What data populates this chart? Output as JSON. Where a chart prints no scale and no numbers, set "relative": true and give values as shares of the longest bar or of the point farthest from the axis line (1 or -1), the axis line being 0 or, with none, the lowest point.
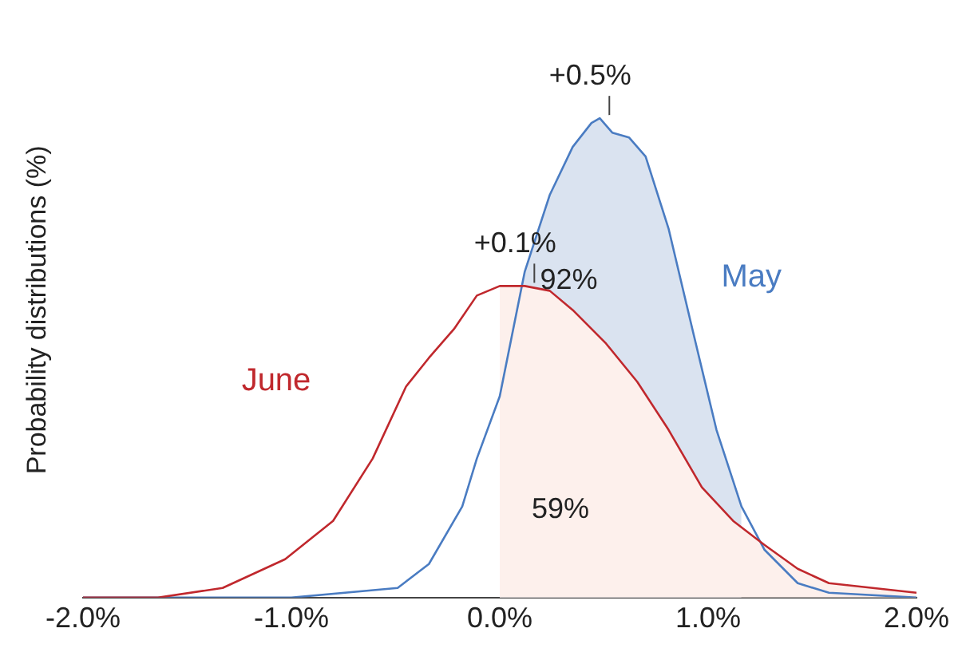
{
  "chart_data": {
    "type": "line",
    "relative": true,
    "ylabel": "Probability distributions (%)",
    "xlim": [
      -2,
      2
    ],
    "xticks": [
      {
        "value": -2,
        "label": "-2.0%"
      },
      {
        "value": -1,
        "label": "-1.0%"
      },
      {
        "value": 0,
        "label": "0.0%"
      },
      {
        "value": 1,
        "label": "1.0%"
      },
      {
        "value": 2,
        "label": "2.0%"
      }
    ],
    "grid": false,
    "legend": false,
    "marker": "none",
    "line_style": "solid",
    "series": [
      {
        "type": "area",
        "color": "#dae3f0",
        "x": [
          0,
          0.12,
          0.24,
          0.35,
          0.44,
          0.48,
          0.54,
          0.62,
          0.7,
          0.81,
          0.93,
          1.04,
          1.16
        ],
        "values": [
          0.42,
          0.68,
          0.84,
          0.94,
          0.99,
          1,
          0.97,
          0.96,
          0.92,
          0.77,
          0.55,
          0.35,
          0.19
        ]
      },
      {
        "type": "area",
        "color": "#fdf0ec",
        "x": [
          0,
          0.12,
          0.24,
          0.35,
          0.51,
          0.66,
          0.81,
          0.97,
          1.12,
          1.27,
          1.43,
          1.58,
          2
        ],
        "values": [
          0.65,
          0.65,
          0.64,
          0.6,
          0.53,
          0.45,
          0.35,
          0.23,
          0.16,
          0.11,
          0.06,
          0.03,
          0.01
        ]
      },
      {
        "name": "May",
        "color": "#4a7cc2",
        "x": [
          -2,
          -1,
          -0.49,
          -0.34,
          -0.18,
          -0.11,
          0,
          0.12,
          0.24,
          0.35,
          0.44,
          0.48,
          0.54,
          0.62,
          0.7,
          0.81,
          0.93,
          1.04,
          1.16,
          1.27,
          1.43,
          1.58,
          2
        ],
        "values": [
          0,
          0,
          0.02,
          0.07,
          0.19,
          0.29,
          0.42,
          0.68,
          0.84,
          0.94,
          0.99,
          1,
          0.97,
          0.96,
          0.92,
          0.77,
          0.55,
          0.35,
          0.19,
          0.1,
          0.03,
          0.01,
          0
        ]
      },
      {
        "name": "June",
        "color": "#c0282d",
        "x": [
          -2,
          -1.64,
          -1.33,
          -1.03,
          -0.8,
          -0.61,
          -0.45,
          -0.34,
          -0.22,
          -0.11,
          0,
          0.12,
          0.24,
          0.35,
          0.51,
          0.66,
          0.81,
          0.97,
          1.12,
          1.27,
          1.43,
          1.58,
          2
        ],
        "values": [
          0,
          0,
          0.02,
          0.08,
          0.16,
          0.29,
          0.44,
          0.5,
          0.56,
          0.63,
          0.65,
          0.65,
          0.64,
          0.6,
          0.53,
          0.45,
          0.35,
          0.23,
          0.16,
          0.11,
          0.06,
          0.03,
          0.01
        ]
      }
    ],
    "annotations": [
      {
        "text": "+0.5%",
        "x": 0.48,
        "y": 1
      },
      {
        "text": "+0.1%",
        "x": 0.12,
        "y": 0.65
      },
      "92%",
      "59%"
    ]
  }
}
